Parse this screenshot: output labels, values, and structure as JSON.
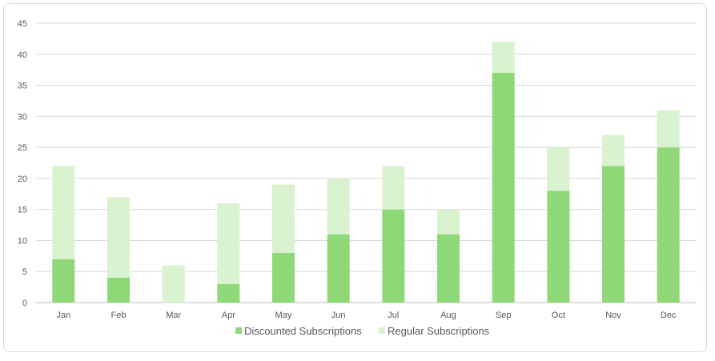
{
  "chart_data": {
    "type": "bar",
    "stacked": true,
    "title": "",
    "xlabel": "",
    "ylabel": "",
    "categories": [
      "Jan",
      "Feb",
      "Mar",
      "Apr",
      "May",
      "Jun",
      "Jul",
      "Aug",
      "Sep",
      "Oct",
      "Nov",
      "Dec"
    ],
    "series": [
      {
        "name": "Discounted Subscriptions",
        "color": "#8fd877",
        "values": [
          7,
          4,
          0,
          3,
          8,
          11,
          15,
          11,
          37,
          18,
          22,
          25
        ]
      },
      {
        "name": "Regular Subscriptions",
        "color": "#d9f2d0",
        "values": [
          15,
          13,
          6,
          13,
          11,
          9,
          7,
          4,
          5,
          7,
          5,
          6
        ]
      }
    ],
    "ylim": [
      0,
      45
    ],
    "yticks": [
      0,
      5,
      10,
      15,
      20,
      25,
      30,
      35,
      40,
      45
    ],
    "grid": true,
    "legend_position": "bottom"
  }
}
